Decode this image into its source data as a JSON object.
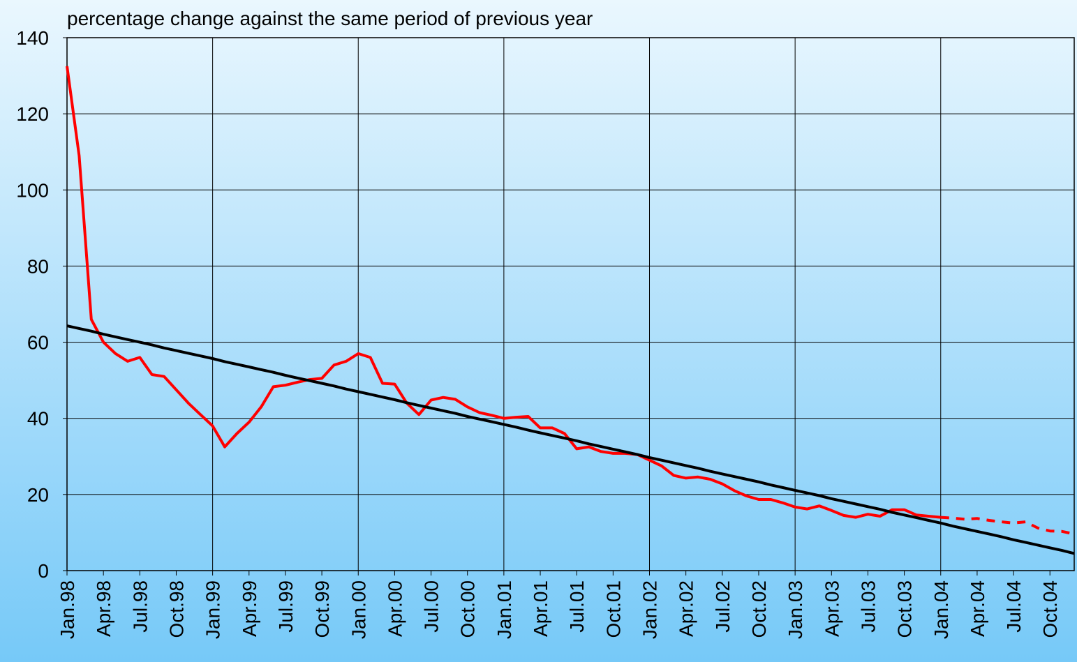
{
  "chart_data": {
    "type": "line",
    "title": "percentage change against the same period of previous year",
    "categories": [
      "Jan.98",
      null,
      null,
      "Apr.98",
      null,
      null,
      "Jul.98",
      null,
      null,
      "Oct.98",
      null,
      null,
      "Jan.99",
      null,
      null,
      "Apr.99",
      null,
      null,
      "Jul.99",
      null,
      null,
      "Oct.99",
      null,
      null,
      "Jan.00",
      null,
      null,
      "Apr.00",
      null,
      null,
      "Jul.00",
      null,
      null,
      "Oct.00",
      null,
      null,
      "Jan.01",
      null,
      null,
      "Apr.01",
      null,
      null,
      "Jul.01",
      null,
      null,
      "Oct.01",
      null,
      null,
      "Jan.02",
      null,
      null,
      "Apr.02",
      null,
      null,
      "Jul.02",
      null,
      null,
      "Oct.02",
      null,
      null,
      "Jan.03",
      null,
      null,
      "Apr.03",
      null,
      null,
      "Jul.03",
      null,
      null,
      "Oct.03",
      null,
      null,
      "Jan.04",
      null,
      null,
      "Apr.04",
      null,
      null,
      "Jul.04",
      null,
      null,
      "Oct.04",
      null,
      null
    ],
    "series": [
      {
        "color": "#ff0000",
        "dashed": false,
        "values": [
          132.5,
          109,
          66,
          60,
          57,
          55,
          56,
          51.5,
          51,
          47.5,
          44,
          41,
          38,
          32.5,
          36,
          39,
          43,
          48.3,
          48.7,
          49.5,
          50.2,
          50.5,
          54,
          55,
          57,
          56,
          49.2,
          49,
          44,
          41,
          44.8,
          45.5,
          45,
          43,
          41.5,
          40.8,
          40,
          40.3,
          40.5,
          37.5,
          37.5,
          36,
          32,
          32.5,
          31.3,
          30.8,
          30.8,
          30.5,
          29,
          27.5,
          25,
          24.3,
          24.6,
          24,
          22.8,
          21,
          19.6,
          18.7,
          18.7,
          17.8,
          16.7,
          16.2,
          17,
          15.8,
          14.5,
          14,
          14.8,
          14.3,
          16,
          16,
          14.6,
          14.3,
          14,
          null,
          null,
          null,
          null,
          null,
          null,
          null,
          null,
          null,
          null,
          null
        ]
      },
      {
        "color": "#ff0000",
        "dashed": true,
        "values": [
          null,
          null,
          null,
          null,
          null,
          null,
          null,
          null,
          null,
          null,
          null,
          null,
          null,
          null,
          null,
          null,
          null,
          null,
          null,
          null,
          null,
          null,
          null,
          null,
          null,
          null,
          null,
          null,
          null,
          null,
          null,
          null,
          null,
          null,
          null,
          null,
          null,
          null,
          null,
          null,
          null,
          null,
          null,
          null,
          null,
          null,
          null,
          null,
          null,
          null,
          null,
          null,
          null,
          null,
          null,
          null,
          null,
          null,
          null,
          null,
          null,
          null,
          null,
          null,
          null,
          null,
          null,
          null,
          null,
          null,
          null,
          null,
          14,
          13.8,
          13.5,
          13.7,
          13.2,
          12.8,
          12.5,
          12.8,
          11.2,
          10.4,
          10.3,
          9.6
        ]
      },
      {
        "color": "#000000",
        "dashed": false,
        "values": [
          64.3,
          63.6,
          62.9,
          62.1,
          61.4,
          60.7,
          60.0,
          59.3,
          58.5,
          57.8,
          57.1,
          56.4,
          55.7,
          54.9,
          54.2,
          53.5,
          52.8,
          52.1,
          51.3,
          50.6,
          49.9,
          49.2,
          48.5,
          47.7,
          47.0,
          46.3,
          45.6,
          44.9,
          44.1,
          43.4,
          42.7,
          42.0,
          41.3,
          40.5,
          39.8,
          39.1,
          38.4,
          37.7,
          36.9,
          36.2,
          35.5,
          34.8,
          34.1,
          33.3,
          32.6,
          31.9,
          31.2,
          30.5,
          29.7,
          29.0,
          28.3,
          27.6,
          26.9,
          26.1,
          25.4,
          24.7,
          24.0,
          23.3,
          22.5,
          21.8,
          21.1,
          20.4,
          19.7,
          18.9,
          18.2,
          17.5,
          16.8,
          16.1,
          15.3,
          14.6,
          13.9,
          13.2,
          12.5,
          11.7,
          11.0,
          10.3,
          9.6,
          8.9,
          8.1,
          7.4,
          6.7,
          6.0,
          5.3,
          4.5
        ]
      }
    ],
    "ylim": [
      0,
      140
    ],
    "yticks": [
      0,
      20,
      40,
      60,
      80,
      100,
      120,
      140
    ],
    "grid": true
  }
}
